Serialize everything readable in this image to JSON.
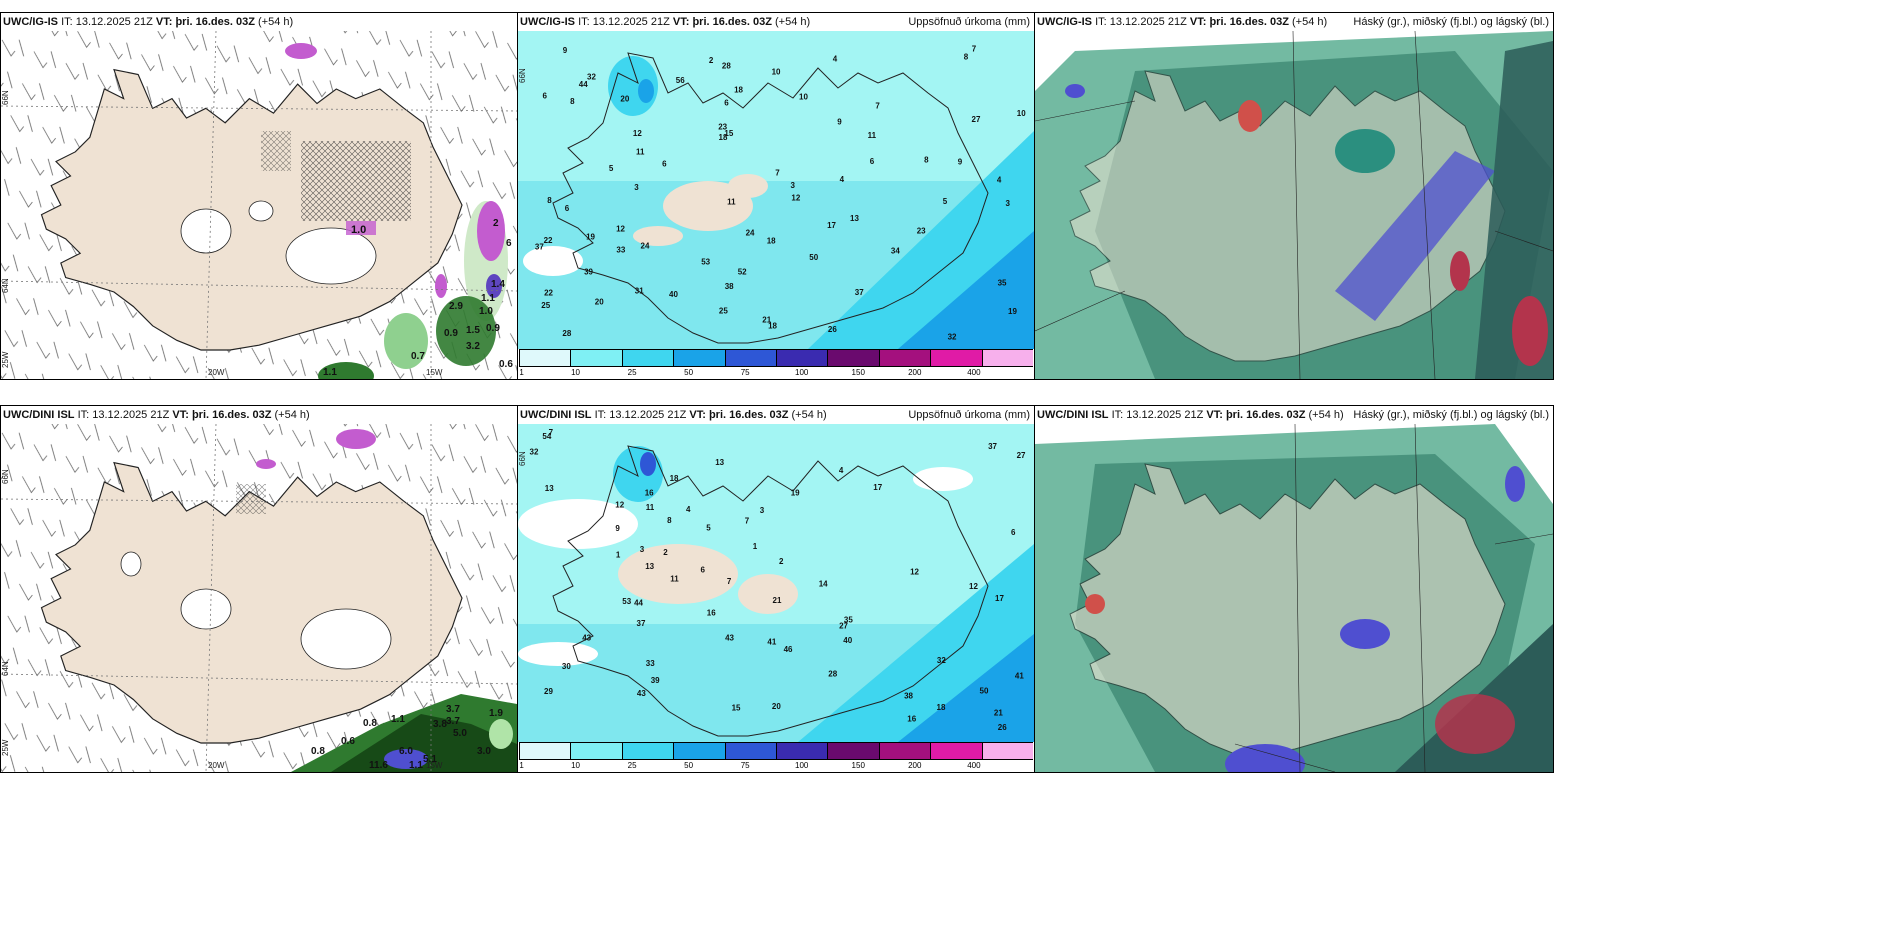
{
  "panels": [
    {
      "id": "tl",
      "model": "UWC/IG-IS",
      "it": "13.12.2025 21Z",
      "vt": "þri. 16.des. 03Z",
      "lead": "(+54 h)",
      "right": ""
    },
    {
      "id": "tm",
      "model": "UWC/IG-IS",
      "it": "13.12.2025 21Z",
      "vt": "þri. 16.des. 03Z",
      "lead": "(+54 h)",
      "right": "Uppsöfnuð úrkoma (mm)"
    },
    {
      "id": "tr",
      "model": "UWC/IG-IS",
      "it": "13.12.2025 21Z",
      "vt": "þri. 16.des. 03Z",
      "lead": "(+54 h)",
      "right": "Háský (gr.), miðský (fj.bl.) og lágský (bl.)"
    },
    {
      "id": "bl",
      "model": "UWC/DINI ISL",
      "it": "13.12.2025 21Z",
      "vt": "þri. 16.des. 03Z",
      "lead": "(+54 h)",
      "right": ""
    },
    {
      "id": "bm",
      "model": "UWC/DINI ISL",
      "it": "13.12.2025 21Z",
      "vt": "þri. 16.des. 03Z",
      "lead": "(+54 h)",
      "right": "Uppsöfnuð úrkoma (mm)"
    },
    {
      "id": "br",
      "model": "UWC/DINI ISL",
      "it": "13.12.2025 21Z",
      "vt": "þri. 16.des. 03Z",
      "lead": "(+54 h)",
      "right": "Háský (gr.), miðský (fj.bl.) og lágský (bl.)"
    }
  ],
  "labels": {
    "it_prefix": "IT:",
    "vt_prefix": "VT:"
  },
  "axes": {
    "lat_66": "66N",
    "lat_64": "64N",
    "lon_20": "20W",
    "lon_15": "15W",
    "lon_25": "25W"
  },
  "colorbar": {
    "ticks": [
      "1",
      "10",
      "25",
      "50",
      "75",
      "100",
      "150",
      "200",
      "400"
    ],
    "colors": [
      "#dff9fb",
      "#7ff0f4",
      "#3fd6ef",
      "#1aa3e8",
      "#2e57d6",
      "#3a2bb0",
      "#6a0a6e",
      "#a4107e",
      "#e01ba6",
      "#f7b0ec"
    ]
  },
  "precip_top": [
    "8",
    "9",
    "7",
    "2",
    "4",
    "32",
    "28",
    "10",
    "44",
    "56",
    "6",
    "20",
    "18",
    "10",
    "7",
    "8",
    "6",
    "10",
    "9",
    "27",
    "23",
    "18",
    "15",
    "12",
    "11",
    "11",
    "8",
    "9",
    "6",
    "7",
    "6",
    "5",
    "4",
    "3",
    "4",
    "3",
    "8",
    "11",
    "12",
    "6",
    "5",
    "3",
    "13",
    "17",
    "12",
    "19",
    "22",
    "18",
    "23",
    "24",
    "24",
    "37",
    "33",
    "34",
    "39",
    "50",
    "53",
    "52",
    "35",
    "38",
    "40",
    "37",
    "31",
    "25",
    "22",
    "20",
    "19",
    "25",
    "18",
    "21",
    "28",
    "26",
    "32"
  ],
  "precip_bottom": [
    "7",
    "54",
    "32",
    "37",
    "27",
    "4",
    "13",
    "18",
    "13",
    "17",
    "16",
    "19",
    "11",
    "12",
    "3",
    "4",
    "7",
    "9",
    "8",
    "5",
    "6",
    "1",
    "2",
    "3",
    "1",
    "2",
    "13",
    "12",
    "7",
    "6",
    "14",
    "11",
    "12",
    "17",
    "21",
    "44",
    "53",
    "16",
    "27",
    "35",
    "37",
    "41",
    "40",
    "43",
    "43",
    "46",
    "33",
    "32",
    "28",
    "30",
    "41",
    "39",
    "43",
    "50",
    "38",
    "29",
    "21",
    "20",
    "18",
    "15",
    "16",
    "26"
  ],
  "wind_top_values": [
    "1.0",
    "2",
    "6",
    "1.1",
    "1.4",
    "2.9",
    "1.0",
    "0.9",
    "0.9",
    "1.5",
    "3.2",
    "0.7",
    "1.1",
    "0.6"
  ],
  "wind_bottom_values": [
    "3.7",
    "3.7",
    "1.9",
    "3.8",
    "5.0",
    "1.1",
    "0.8",
    "0.6",
    "6.0",
    "3.0",
    "0.8",
    "11.6",
    "5.1",
    "1.1"
  ]
}
